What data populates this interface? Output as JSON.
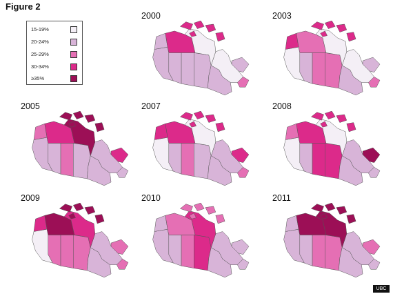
{
  "figure_title": "Figure 2",
  "legend": [
    {
      "label": "15-19%",
      "color": "#f4eff6"
    },
    {
      "label": "20-24%",
      "color": "#d8b4d8"
    },
    {
      "label": "25-29%",
      "color": "#e56fb4"
    },
    {
      "label": "30-34%",
      "color": "#dc2a8a"
    },
    {
      "label": "≥35%",
      "color": "#9c0f56"
    }
  ],
  "region_order": [
    "BC",
    "AB",
    "SK",
    "MB",
    "ON",
    "QC",
    "NL",
    "YT",
    "NT",
    "NU",
    "ARC",
    "MAR"
  ],
  "maps": [
    {
      "year": "2000",
      "classes": {
        "BC": 1,
        "AB": 1,
        "SK": 1,
        "MB": 1,
        "ON": 1,
        "QC": 0,
        "NL": 1,
        "YT": 1,
        "NT": 3,
        "NU": 0,
        "ARC": 3,
        "MAR": 2
      }
    },
    {
      "year": "2003",
      "classes": {
        "BC": 0,
        "AB": 1,
        "SK": 2,
        "MB": 2,
        "ON": 1,
        "QC": 0,
        "NL": 1,
        "YT": 3,
        "NT": 2,
        "NU": 0,
        "ARC": 3,
        "MAR": 2
      }
    },
    {
      "year": "2005",
      "classes": {
        "BC": 1,
        "AB": 1,
        "SK": 2,
        "MB": 1,
        "ON": 1,
        "QC": 1,
        "NL": 3,
        "YT": 2,
        "NT": 3,
        "NU": 4,
        "ARC": 4,
        "MAR": 1
      }
    },
    {
      "year": "2007",
      "classes": {
        "BC": 0,
        "AB": 1,
        "SK": 2,
        "MB": 1,
        "ON": 1,
        "QC": 1,
        "NL": 3,
        "YT": 3,
        "NT": 3,
        "NU": 0,
        "ARC": 3,
        "MAR": 2
      }
    },
    {
      "year": "2008",
      "classes": {
        "BC": 0,
        "AB": 1,
        "SK": 3,
        "MB": 3,
        "ON": 1,
        "QC": 1,
        "NL": 4,
        "YT": 2,
        "NT": 3,
        "NU": 0,
        "ARC": 3,
        "MAR": 1
      }
    },
    {
      "year": "2009",
      "classes": {
        "BC": 0,
        "AB": 2,
        "SK": 2,
        "MB": 2,
        "ON": 1,
        "QC": 1,
        "NL": 2,
        "YT": 3,
        "NT": 4,
        "NU": 3,
        "ARC": 4,
        "MAR": 2
      }
    },
    {
      "year": "2010",
      "classes": {
        "BC": 1,
        "AB": 1,
        "SK": 2,
        "MB": 3,
        "ON": 1,
        "QC": 1,
        "NL": 1,
        "YT": 1,
        "NT": 2,
        "NU": 3,
        "ARC": 2,
        "MAR": 1
      }
    },
    {
      "year": "2011",
      "classes": {
        "BC": 1,
        "AB": 1,
        "SK": 2,
        "MB": 2,
        "ON": 1,
        "QC": 1,
        "NL": 2,
        "YT": 1,
        "NT": 4,
        "NU": 4,
        "ARC": 4,
        "MAR": 1
      }
    }
  ],
  "logo_text": "UBC"
}
